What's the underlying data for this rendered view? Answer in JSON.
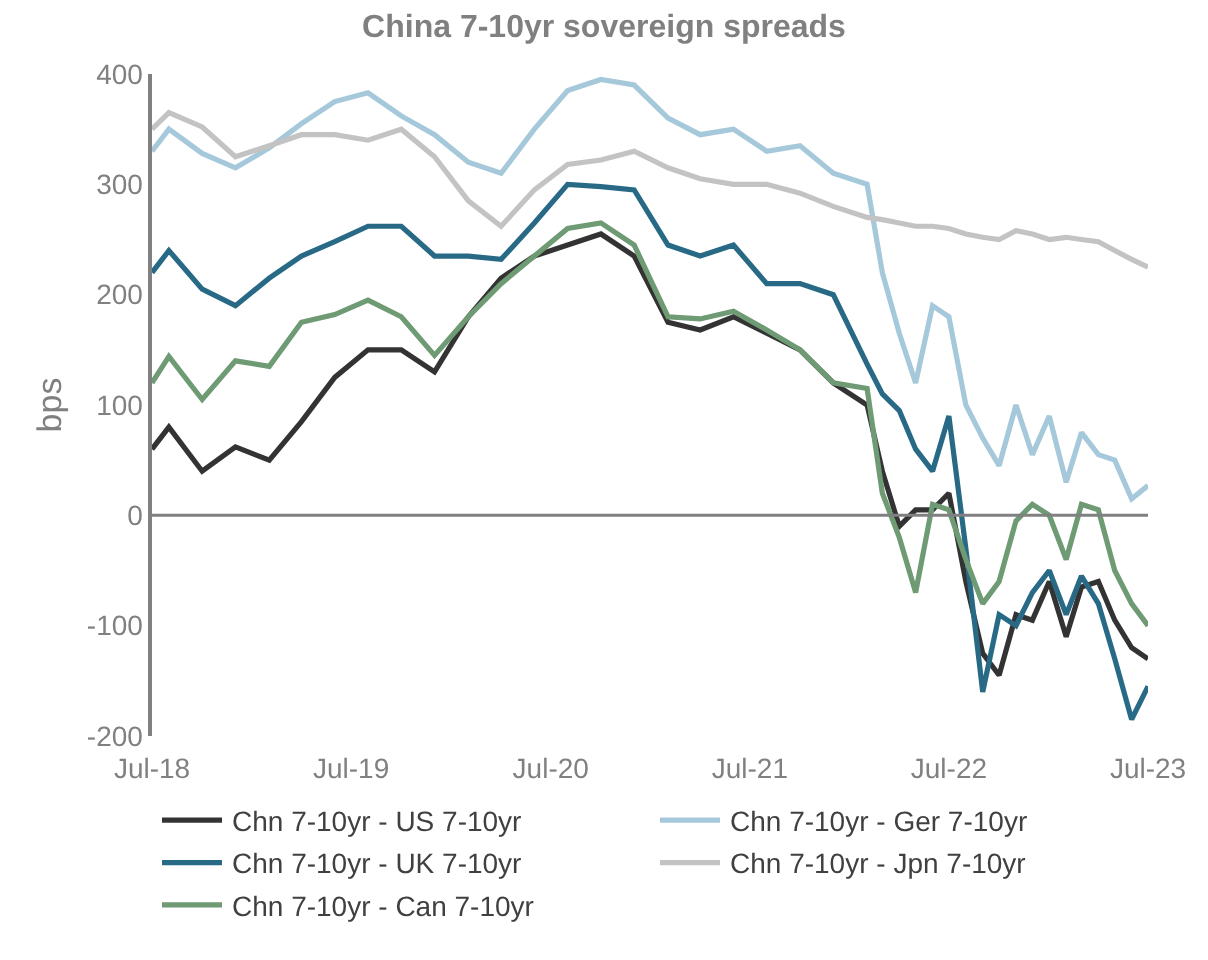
{
  "chart_data": {
    "type": "line",
    "title": "China 7-10yr sovereign spreads",
    "ylabel": "bps",
    "x": [
      "2018-07",
      "2018-08",
      "2018-10",
      "2018-12",
      "2019-02",
      "2019-04",
      "2019-06",
      "2019-08",
      "2019-10",
      "2019-12",
      "2020-02",
      "2020-04",
      "2020-06",
      "2020-08",
      "2020-10",
      "2020-12",
      "2021-02",
      "2021-04",
      "2021-06",
      "2021-08",
      "2021-10",
      "2021-12",
      "2022-02",
      "2022-03",
      "2022-04",
      "2022-05",
      "2022-06",
      "2022-07",
      "2022-08",
      "2022-09",
      "2022-10",
      "2022-11",
      "2022-12",
      "2023-01",
      "2023-02",
      "2023-03",
      "2023-04",
      "2023-05",
      "2023-06",
      "2023-07"
    ],
    "series": [
      {
        "name": "Chn 7-10yr - US 7-10yr",
        "color": "#333333",
        "values": [
          60,
          80,
          40,
          62,
          50,
          85,
          125,
          150,
          150,
          130,
          180,
          215,
          235,
          245,
          255,
          235,
          175,
          168,
          180,
          165,
          150,
          120,
          100,
          40,
          -10,
          5,
          5,
          20,
          -60,
          -125,
          -145,
          -90,
          -95,
          -60,
          -110,
          -65,
          -60,
          -95,
          -120,
          -130
        ]
      },
      {
        "name": "Chn 7-10yr - Ger 7-10yr",
        "color": "#a5c8da",
        "values": [
          330,
          350,
          328,
          315,
          333,
          355,
          375,
          383,
          362,
          345,
          320,
          310,
          350,
          385,
          395,
          390,
          360,
          345,
          350,
          330,
          335,
          310,
          300,
          220,
          165,
          120,
          190,
          180,
          100,
          70,
          45,
          100,
          55,
          90,
          30,
          75,
          55,
          50,
          15,
          27
        ]
      },
      {
        "name": "Chn 7-10yr - UK 7-10yr",
        "color": "#286a86",
        "values": [
          220,
          240,
          205,
          190,
          215,
          235,
          248,
          262,
          262,
          235,
          235,
          232,
          265,
          300,
          298,
          295,
          245,
          235,
          245,
          210,
          210,
          200,
          137,
          110,
          95,
          60,
          40,
          90,
          -30,
          -160,
          -90,
          -100,
          -70,
          -50,
          -90,
          -55,
          -80,
          -130,
          -185,
          -155
        ]
      },
      {
        "name": "Chn 7-10yr - Jpn 7-10yr",
        "color": "#c3c3c3",
        "values": [
          350,
          365,
          352,
          325,
          335,
          345,
          345,
          340,
          350,
          325,
          285,
          262,
          295,
          318,
          322,
          330,
          315,
          305,
          300,
          300,
          292,
          280,
          270,
          268,
          265,
          262,
          262,
          260,
          255,
          252,
          250,
          258,
          255,
          250,
          252,
          250,
          248,
          240,
          232,
          225
        ]
      },
      {
        "name": "Chn 7-10yr - Can 7-10yr",
        "color": "#6e9a74",
        "values": [
          120,
          144,
          105,
          140,
          135,
          175,
          182,
          195,
          180,
          145,
          180,
          210,
          235,
          260,
          265,
          245,
          180,
          178,
          185,
          168,
          150,
          120,
          115,
          20,
          -20,
          -70,
          10,
          5,
          -40,
          -80,
          -60,
          -5,
          10,
          0,
          -40,
          10,
          5,
          -50,
          -80,
          -100
        ]
      }
    ],
    "xlim": [
      "2018-07",
      "2023-07"
    ],
    "xticks": [
      {
        "value": "2018-07",
        "label": "Jul-18"
      },
      {
        "value": "2019-07",
        "label": "Jul-19"
      },
      {
        "value": "2020-07",
        "label": "Jul-20"
      },
      {
        "value": "2021-07",
        "label": "Jul-21"
      },
      {
        "value": "2022-07",
        "label": "Jul-22"
      },
      {
        "value": "2023-07",
        "label": "Jul-23"
      }
    ],
    "ylim": [
      -200,
      400
    ],
    "yticks": [
      -200,
      -100,
      0,
      100,
      200,
      300,
      400
    ],
    "ref_lines": [
      {
        "axis": "y",
        "value": 0,
        "color": "#808080"
      }
    ],
    "legend": "bottom",
    "marker": "none",
    "line_style": "solid"
  }
}
